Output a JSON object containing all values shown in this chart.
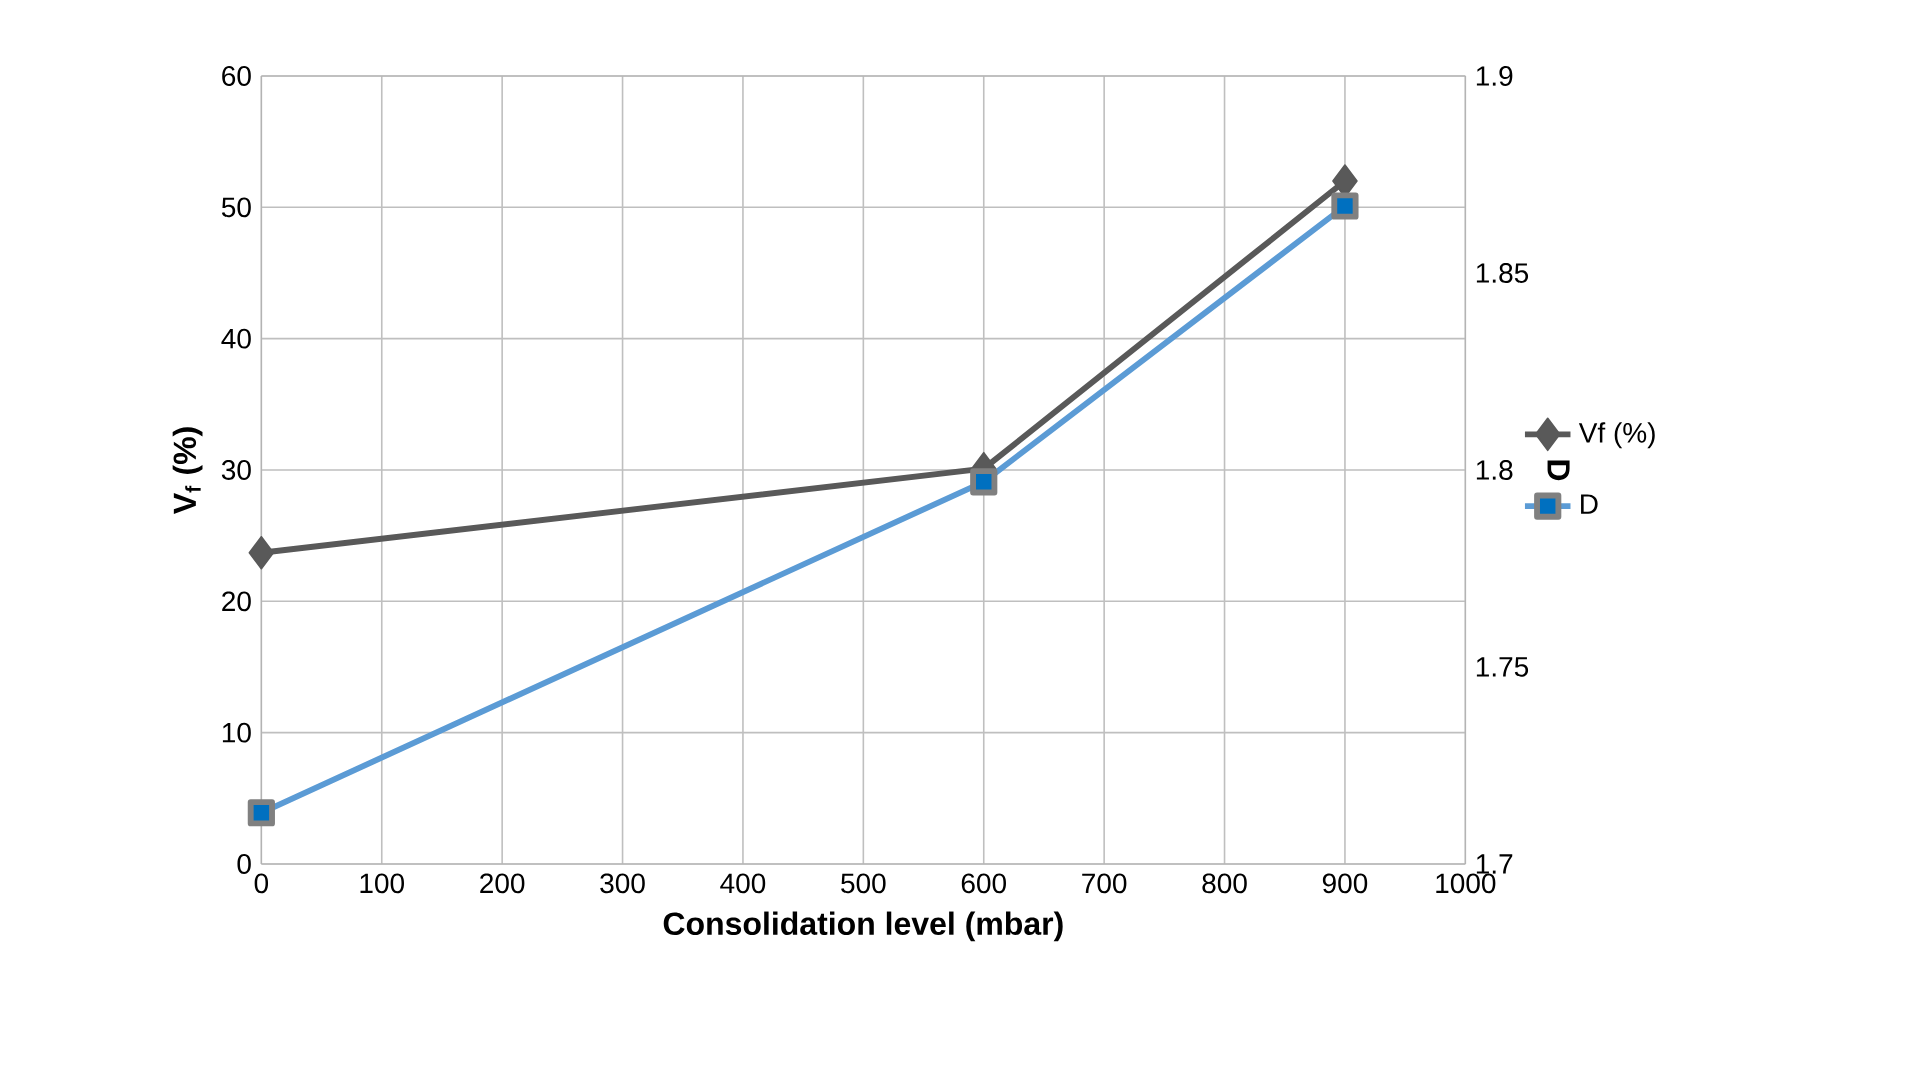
{
  "chart_data": {
    "type": "line",
    "xlabel": "Consolidation level (mbar)",
    "ylabel": "V$_{f}$ (%)",
    "y2label": "D",
    "x": [
      0,
      600,
      900
    ],
    "series": [
      {
        "name": "Vf (%)",
        "color": "#595959",
        "marker": "diamond",
        "values": [
          23.7,
          30.1,
          52
        ]
      },
      {
        "name": "D",
        "color": "#5b9bd5",
        "marker": "square",
        "axis": "y2",
        "values": [
          1.713,
          1.797,
          1.867
        ]
      }
    ],
    "xlim": [
      0,
      1000
    ],
    "xticks": [
      0,
      100,
      200,
      300,
      400,
      500,
      600,
      700,
      800,
      900,
      1000
    ],
    "ylim": [
      0,
      60
    ],
    "yticks": [
      0,
      10,
      20,
      30,
      40,
      50,
      60
    ],
    "y2lim": [
      1.7,
      1.9
    ],
    "y2ticks": [
      1.7,
      1.75,
      1.8,
      1.85,
      1.9
    ],
    "grid": true,
    "legend": "right",
    "line_style": "solid"
  }
}
